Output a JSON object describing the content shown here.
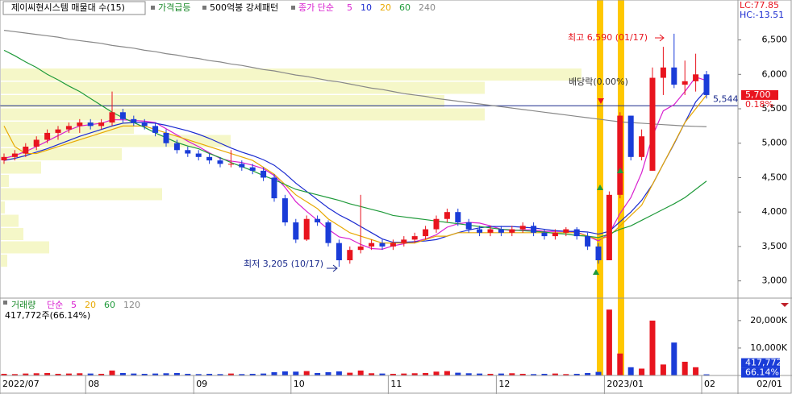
{
  "header": {
    "title": "제이씨현시스템 매물대 수(15)",
    "badges": [
      "가격급등",
      "500억봉 강세패턴"
    ],
    "ma_label": "종가 단순"
  },
  "x_axis_extra": "02/01",
  "chart_data": [
    {
      "type": "candlestick",
      "up_color": "#e8141e",
      "down_color": "#1a3cd8",
      "categories": [
        "2022/07",
        null,
        null,
        null,
        null,
        null,
        null,
        null,
        "08",
        null,
        null,
        null,
        null,
        null,
        null,
        null,
        null,
        null,
        "09",
        null,
        null,
        null,
        null,
        null,
        null,
        null,
        null,
        "10",
        null,
        null,
        null,
        null,
        null,
        null,
        null,
        null,
        "11",
        null,
        null,
        null,
        null,
        null,
        null,
        null,
        null,
        null,
        "12",
        null,
        null,
        null,
        null,
        null,
        null,
        null,
        null,
        null,
        "2023/01",
        null,
        null,
        null,
        null,
        null,
        null,
        null,
        null,
        "02"
      ],
      "ohlc": [
        [
          4750,
          4850,
          4700,
          4800
        ],
        [
          4800,
          4900,
          4750,
          4850
        ],
        [
          4850,
          5000,
          4800,
          4950
        ],
        [
          4950,
          5100,
          4900,
          5050
        ],
        [
          5050,
          5200,
          5000,
          5150
        ],
        [
          5150,
          5250,
          5050,
          5200
        ],
        [
          5200,
          5300,
          5150,
          5250
        ],
        [
          5250,
          5350,
          5150,
          5300
        ],
        [
          5300,
          5350,
          5200,
          5250
        ],
        [
          5250,
          5350,
          5200,
          5300
        ],
        [
          5300,
          5750,
          5250,
          5450
        ],
        [
          5450,
          5500,
          5300,
          5350
        ],
        [
          5350,
          5400,
          5250,
          5300
        ],
        [
          5300,
          5350,
          5200,
          5250
        ],
        [
          5250,
          5300,
          5100,
          5150
        ],
        [
          5150,
          5200,
          4950,
          5000
        ],
        [
          5000,
          5050,
          4850,
          4900
        ],
        [
          4900,
          4950,
          4800,
          4850
        ],
        [
          4850,
          4900,
          4750,
          4800
        ],
        [
          4800,
          4850,
          4700,
          4750
        ],
        [
          4750,
          4800,
          4650,
          4700
        ],
        [
          4700,
          4900,
          4650,
          4700
        ],
        [
          4700,
          4750,
          4600,
          4650
        ],
        [
          4650,
          4700,
          4550,
          4600
        ],
        [
          4600,
          4650,
          4450,
          4500
        ],
        [
          4500,
          4550,
          4150,
          4200
        ],
        [
          4200,
          4250,
          3800,
          3850
        ],
        [
          3850,
          3900,
          3550,
          3600
        ],
        [
          3600,
          3950,
          3580,
          3900
        ],
        [
          3900,
          3950,
          3800,
          3850
        ],
        [
          3850,
          3880,
          3500,
          3550
        ],
        [
          3550,
          3600,
          3205,
          3300
        ],
        [
          3300,
          3500,
          3250,
          3450
        ],
        [
          3450,
          4250,
          3400,
          3500
        ],
        [
          3500,
          3600,
          3450,
          3550
        ],
        [
          3550,
          3600,
          3450,
          3500
        ],
        [
          3500,
          3600,
          3450,
          3550
        ],
        [
          3550,
          3650,
          3500,
          3600
        ],
        [
          3600,
          3700,
          3550,
          3650
        ],
        [
          3650,
          3800,
          3600,
          3750
        ],
        [
          3750,
          3950,
          3700,
          3900
        ],
        [
          3900,
          4050,
          3850,
          4000
        ],
        [
          4000,
          4050,
          3800,
          3850
        ],
        [
          3850,
          3900,
          3700,
          3750
        ],
        [
          3750,
          3800,
          3650,
          3700
        ],
        [
          3700,
          3800,
          3650,
          3750
        ],
        [
          3750,
          3800,
          3650,
          3700
        ],
        [
          3700,
          3800,
          3650,
          3750
        ],
        [
          3750,
          3850,
          3700,
          3800
        ],
        [
          3800,
          3850,
          3650,
          3700
        ],
        [
          3700,
          3750,
          3600,
          3650
        ],
        [
          3650,
          3750,
          3600,
          3700
        ],
        [
          3700,
          3780,
          3650,
          3750
        ],
        [
          3750,
          3780,
          3600,
          3650
        ],
        [
          3650,
          3700,
          3450,
          3500
        ],
        [
          3500,
          3550,
          3250,
          3300
        ],
        [
          3300,
          4300,
          3300,
          4250
        ],
        [
          4250,
          5450,
          4200,
          5400
        ],
        [
          5400,
          5400,
          4750,
          4800
        ],
        [
          4800,
          5200,
          4750,
          5100
        ],
        [
          4600,
          6100,
          4600,
          5950
        ],
        [
          5950,
          6400,
          5700,
          6100
        ],
        [
          6100,
          6590,
          5800,
          5850
        ],
        [
          5850,
          6200,
          5700,
          5900
        ],
        [
          5900,
          6300,
          5750,
          6000
        ],
        [
          6000,
          6050,
          5650,
          5700
        ]
      ],
      "series": [
        {
          "name": "5",
          "color": "#d81ecf",
          "values": [
            4780,
            4820,
            4880,
            4950,
            5030,
            5110,
            5190,
            5250,
            5270,
            5290,
            5340,
            5340,
            5330,
            5320,
            5300,
            5210,
            5120,
            5030,
            4950,
            4860,
            4780,
            4740,
            4720,
            4680,
            4630,
            4530,
            4360,
            4150,
            4010,
            3880,
            3750,
            3640,
            3610,
            3530,
            3470,
            3460,
            3510,
            3540,
            3570,
            3610,
            3670,
            3780,
            3830,
            3850,
            3840,
            3800,
            3750,
            3730,
            3740,
            3740,
            3720,
            3720,
            3720,
            3710,
            3650,
            3580,
            3690,
            3980,
            4210,
            4570,
            5100,
            5470,
            5560,
            5750,
            5960,
            5910
          ]
        },
        {
          "name": "10",
          "color": "#1a2ad0",
          "values": [
            4750,
            4780,
            4820,
            4870,
            4920,
            4980,
            5040,
            5100,
            5150,
            5200,
            5250,
            5290,
            5300,
            5300,
            5290,
            5260,
            5220,
            5180,
            5130,
            5070,
            5000,
            4930,
            4870,
            4820,
            4760,
            4680,
            4560,
            4420,
            4300,
            4180,
            4060,
            3960,
            3880,
            3790,
            3700,
            3610,
            3560,
            3560,
            3570,
            3580,
            3600,
            3650,
            3700,
            3740,
            3770,
            3790,
            3790,
            3790,
            3780,
            3770,
            3750,
            3730,
            3720,
            3720,
            3710,
            3680,
            3720,
            3860,
            4000,
            4170,
            4400,
            4700,
            4990,
            5300,
            5600,
            5780
          ]
        },
        {
          "name": "20",
          "color": "#e8a800",
          "values": [
            5250,
            4950,
            4850,
            4850,
            4900,
            4950,
            5000,
            5050,
            5100,
            5150,
            5200,
            5250,
            5250,
            5250,
            5200,
            5150,
            5100,
            5050,
            5000,
            4950,
            4900,
            4850,
            4800,
            4750,
            4650,
            4550,
            4400,
            4250,
            4150,
            4050,
            3900,
            3800,
            3700,
            3650,
            3600,
            3550,
            3550,
            3550,
            3550,
            3600,
            3650,
            3650,
            3700,
            3700,
            3700,
            3700,
            3700,
            3700,
            3700,
            3700,
            3700,
            3700,
            3700,
            3700,
            3650,
            3600,
            3650,
            3800,
            3950,
            4100,
            4400,
            4700,
            5000,
            5300,
            5500,
            5700
          ]
        },
        {
          "name": "60",
          "color": "#1f9a3a",
          "values": [
            6350,
            6270,
            6180,
            6100,
            6000,
            5920,
            5830,
            5750,
            5650,
            5550,
            5450,
            5370,
            5300,
            5230,
            5150,
            5080,
            5010,
            4960,
            4920,
            4850,
            4790,
            4720,
            4660,
            4600,
            4530,
            4470,
            4400,
            4330,
            4290,
            4250,
            4210,
            4170,
            4120,
            4080,
            4040,
            4000,
            3950,
            3930,
            3910,
            3890,
            3870,
            3850,
            3830,
            3810,
            3790,
            3770,
            3750,
            3740,
            3730,
            3720,
            3710,
            3690,
            3680,
            3660,
            3650,
            3630,
            3680,
            3750,
            3800,
            3880,
            3960,
            4040,
            4120,
            4210,
            4330,
            4450
          ]
        },
        {
          "name": "240",
          "color": "#888888",
          "values": [
            6640,
            6620,
            6600,
            6580,
            6560,
            6540,
            6510,
            6490,
            6470,
            6450,
            6420,
            6400,
            6380,
            6350,
            6330,
            6300,
            6280,
            6250,
            6230,
            6200,
            6180,
            6150,
            6130,
            6100,
            6070,
            6050,
            6020,
            5990,
            5970,
            5940,
            5910,
            5890,
            5860,
            5830,
            5800,
            5780,
            5750,
            5720,
            5700,
            5680,
            5650,
            5630,
            5610,
            5590,
            5570,
            5550,
            5530,
            5510,
            5490,
            5470,
            5450,
            5430,
            5410,
            5390,
            5370,
            5350,
            5330,
            5310,
            5300,
            5290,
            5280,
            5270,
            5260,
            5250,
            5245,
            5240
          ]
        }
      ],
      "ylim": [
        2750,
        7080
      ],
      "yticks": [
        {
          "value": 3000,
          "label": "3,000"
        },
        {
          "value": 3500,
          "label": "3,500"
        },
        {
          "value": 4000,
          "label": "4,000"
        },
        {
          "value": 4500,
          "label": "4,500"
        },
        {
          "value": 5000,
          "label": "5,000"
        },
        {
          "value": 5500,
          "label": "5,500"
        },
        {
          "value": 6000,
          "label": "6,000"
        },
        {
          "value": 6500,
          "label": "6,500"
        }
      ],
      "price_profile": {
        "color": "#f5f7c8",
        "values": [
          720,
          600,
          550,
          600,
          165,
          285,
          150,
          50,
          10,
          200,
          5,
          22,
          28,
          60,
          8
        ]
      },
      "annotations": {
        "high": "최고 6,590 (01/17)",
        "low": "최저 3,205 (10/17)",
        "dividend": "배당락(0.00%)"
      },
      "reference_line": {
        "value": 5544,
        "label": "5,544",
        "color": "#1a2a8c"
      },
      "right_labels": [
        "LC:77.85",
        "HC:-13.51"
      ],
      "last_price": {
        "value": 5700,
        "label": "5,700"
      },
      "change": "0.18%"
    },
    {
      "type": "bar",
      "title": "거래량",
      "ma_label": "단순",
      "ma_periods": [
        {
          "name": "5",
          "color": "#d81ecf"
        },
        {
          "name": "20",
          "color": "#e8a800"
        },
        {
          "name": "60",
          "color": "#1f9a3a"
        },
        {
          "name": "120",
          "color": "#888888"
        }
      ],
      "summary": "417,772주(66.14%)",
      "values": [
        600,
        500,
        700,
        800,
        900,
        600,
        700,
        800,
        700,
        600,
        1800,
        900,
        700,
        600,
        700,
        800,
        900,
        600,
        500,
        600,
        500,
        700,
        500,
        600,
        700,
        1200,
        1500,
        1400,
        1600,
        900,
        1200,
        1500,
        1000,
        1800,
        800,
        700,
        600,
        700,
        800,
        900,
        1400,
        1600,
        1000,
        800,
        700,
        600,
        700,
        800,
        600,
        500,
        600,
        700,
        500,
        600,
        900,
        1300,
        24000,
        8000,
        3000,
        2500,
        20000,
        4000,
        12000,
        5000,
        3000,
        418
      ],
      "ylim": [
        0,
        27600
      ],
      "yticks": [
        {
          "value": 10000,
          "label": "10,000K"
        },
        {
          "value": 20000,
          "label": "20,000K"
        }
      ],
      "last": {
        "value": 417.772,
        "label": "417,772"
      },
      "ratio": "66.14%"
    }
  ]
}
